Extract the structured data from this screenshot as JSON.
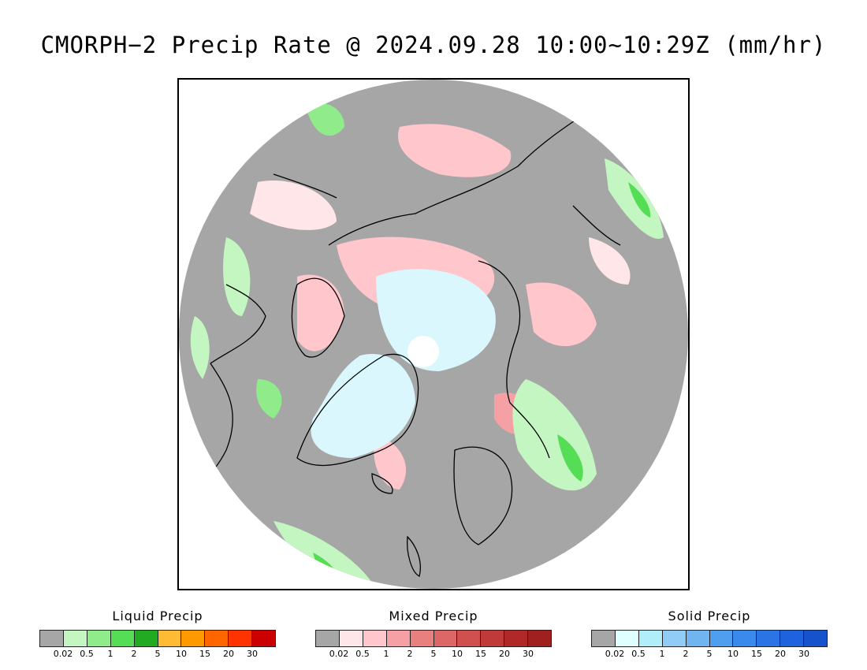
{
  "title": "CMORPH−2 Precip Rate @ 2024.09.28 10:00~10:29Z (mm/hr)",
  "map": {
    "projection": "north-polar-stereographic",
    "colors": {
      "no_precip": "#a6a6a6",
      "ocean_disk_background": "#a6a6a6",
      "outside": "#ffffff",
      "coastline": "#000000",
      "ice_cap": "#d9f7fd",
      "pole": "#ffffff"
    }
  },
  "legends": [
    {
      "title": "Liquid Precip",
      "colors": [
        "#a6a6a6",
        "#c4f6c1",
        "#90ec8a",
        "#55dd55",
        "#22aa22",
        "#ffbb33",
        "#ff9900",
        "#ff6600",
        "#ff3300",
        "#cc0000"
      ],
      "ticks": [
        "0.02",
        "0.5",
        "1",
        "2",
        "5",
        "10",
        "15",
        "20",
        "30"
      ]
    },
    {
      "title": "Mixed Precip",
      "colors": [
        "#a6a6a6",
        "#ffe6e9",
        "#ffc6cb",
        "#f5a0a5",
        "#e88080",
        "#dd6666",
        "#d05050",
        "#c03a3a",
        "#b02828",
        "#a02020"
      ],
      "ticks": [
        "0.02",
        "0.5",
        "1",
        "2",
        "5",
        "10",
        "15",
        "20",
        "30"
      ]
    },
    {
      "title": "Solid Precip",
      "colors": [
        "#a6a6a6",
        "#e0ffff",
        "#b0eefa",
        "#90ccf5",
        "#70b4f0",
        "#509ef0",
        "#3a8aee",
        "#2a74e6",
        "#1e62dd",
        "#1552cc"
      ],
      "ticks": [
        "0.02",
        "0.5",
        "1",
        "2",
        "5",
        "10",
        "15",
        "20",
        "30"
      ]
    }
  ]
}
